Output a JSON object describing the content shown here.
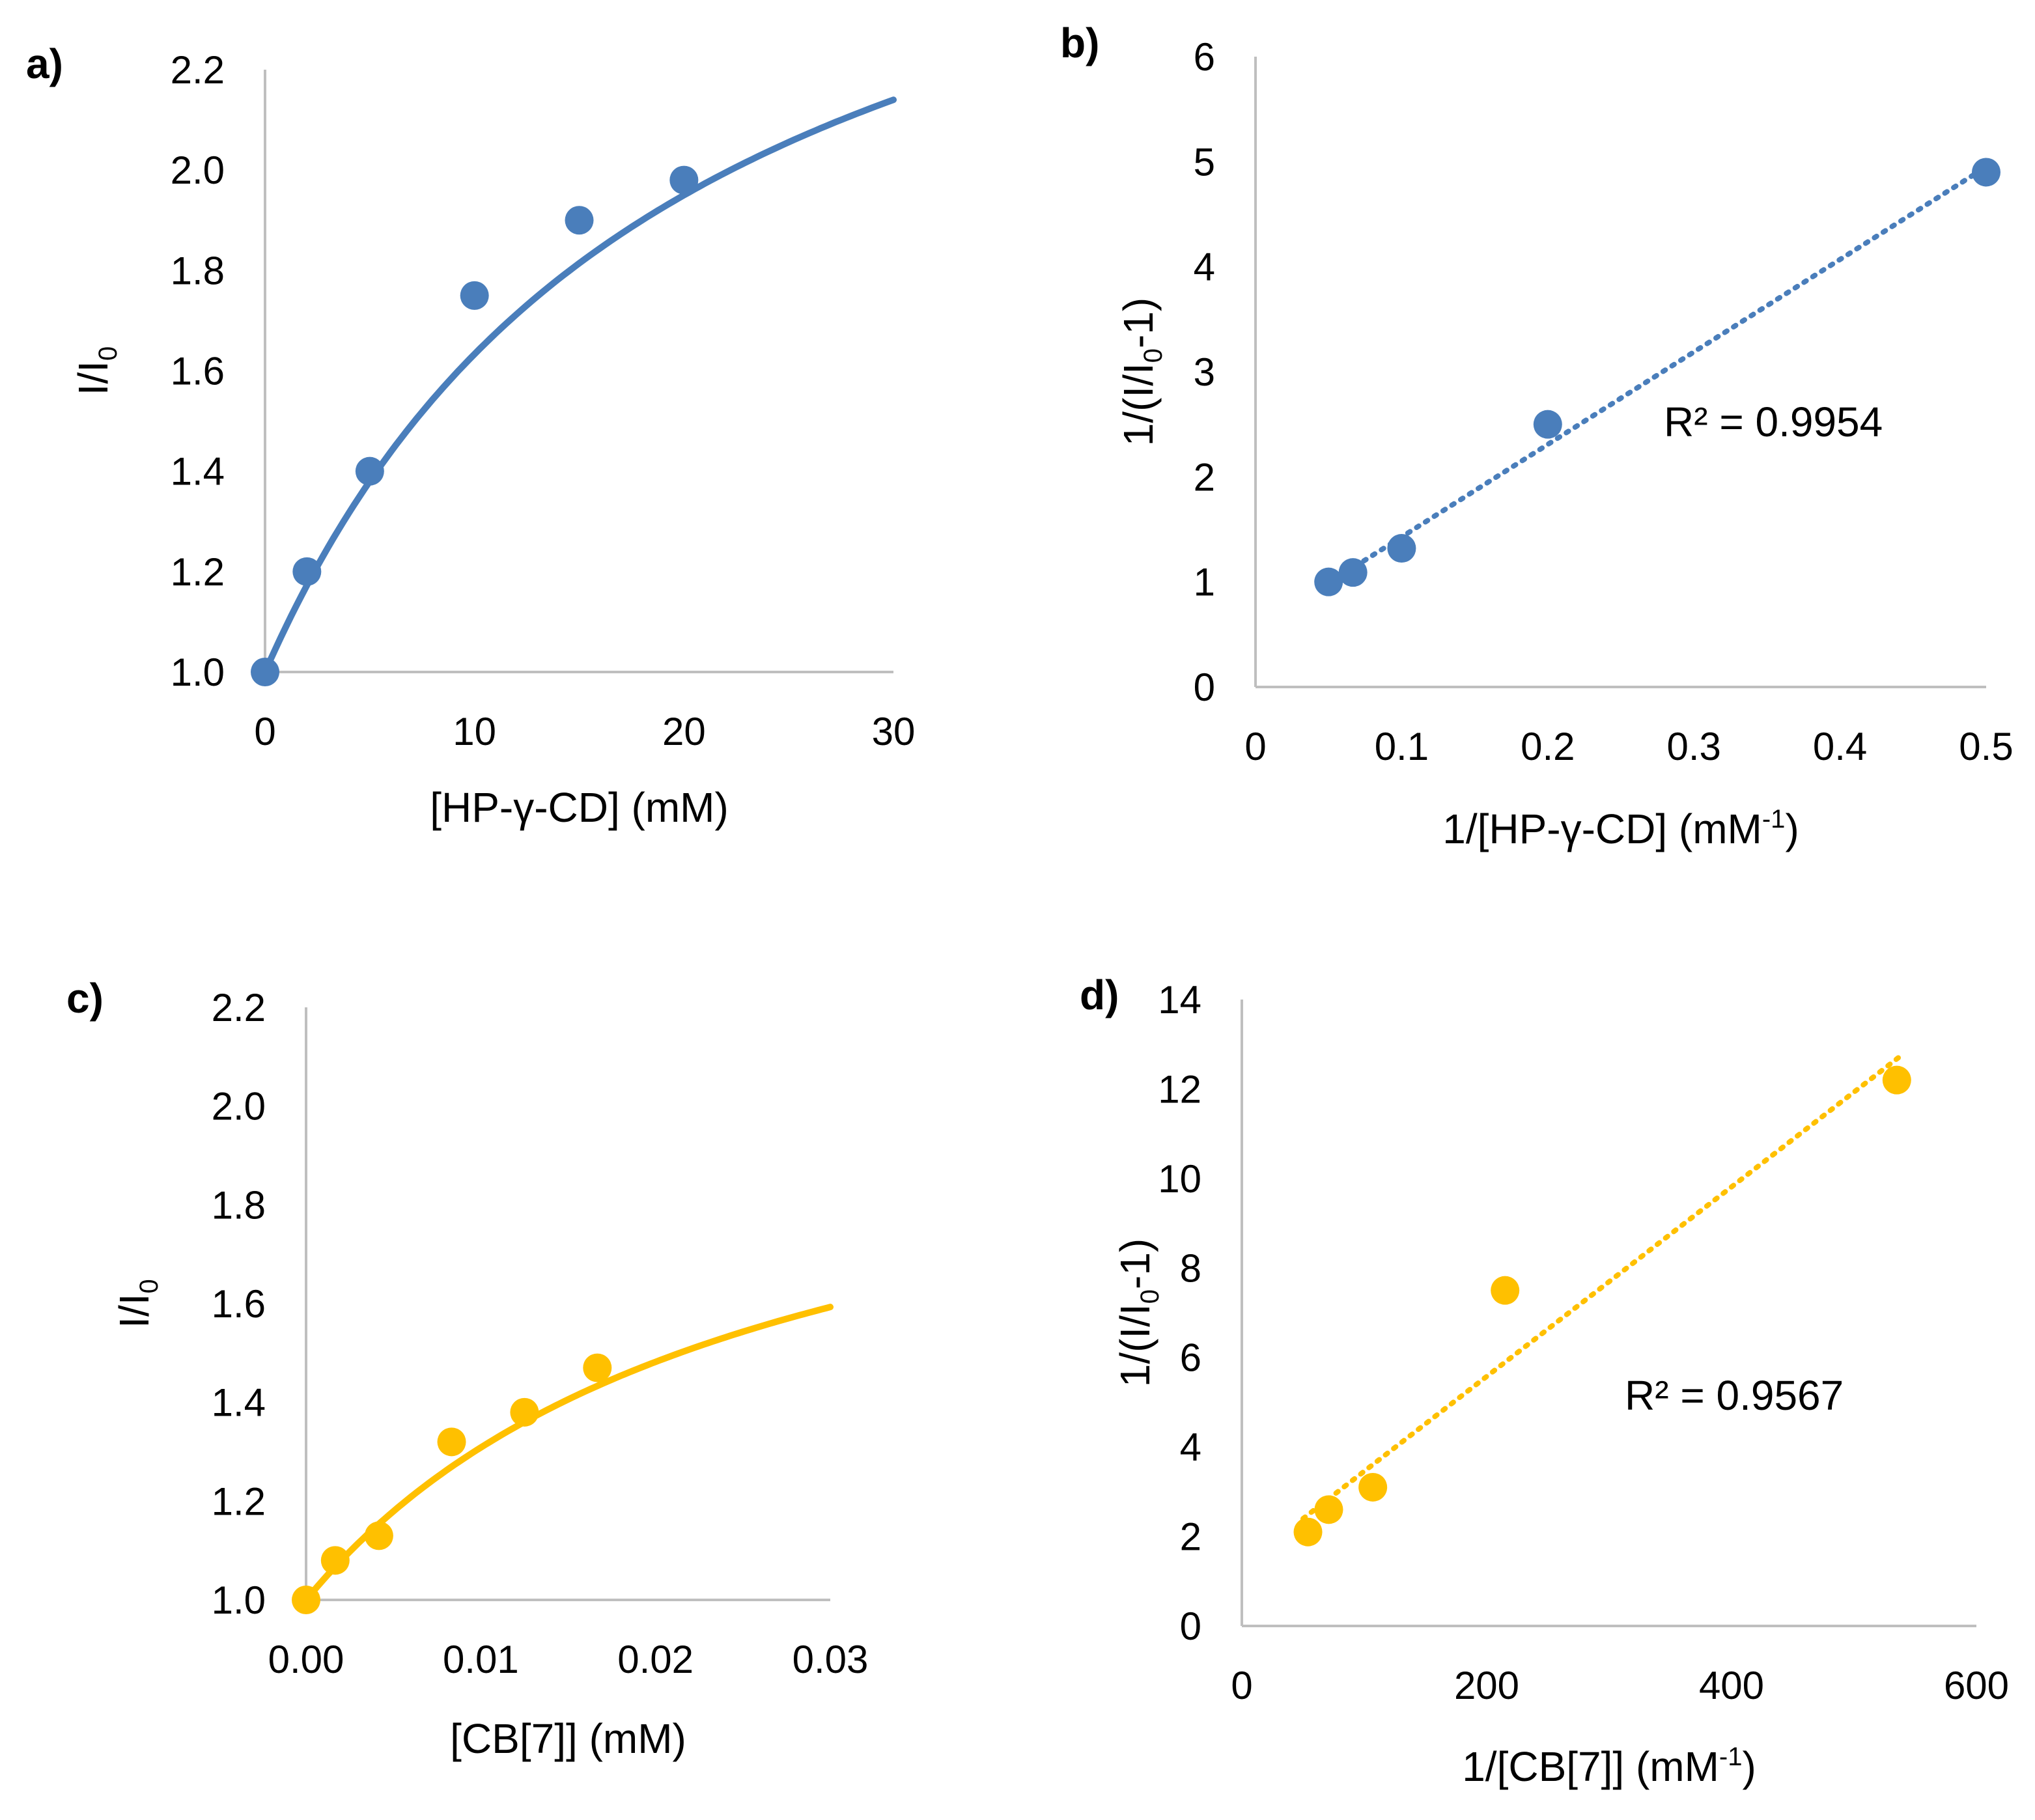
{
  "chart_data": [
    {
      "id": "a",
      "panel_label": "a)",
      "type": "scatter",
      "color": "#4a7ebb",
      "xlabel": "[HP-γ-CD] (mM)",
      "ylabel": {
        "main": "I/I",
        "sub": "0"
      },
      "xlim": [
        0,
        30
      ],
      "ylim": [
        1.0,
        2.2
      ],
      "xticks": [
        0,
        10,
        20,
        30
      ],
      "yticks": [
        1.0,
        1.2,
        1.4,
        1.6,
        1.8,
        2.0,
        2.2
      ],
      "x_decimals": 0,
      "y_decimals": 1,
      "x": [
        0,
        2,
        5,
        10,
        15,
        20
      ],
      "y": [
        1.0,
        1.2,
        1.4,
        1.75,
        1.9,
        1.98
      ],
      "fit": {
        "type": "binding_curve",
        "style": "solid",
        "a": 1.9,
        "k": 0.05
      },
      "annotation": ""
    },
    {
      "id": "b",
      "panel_label": "b)",
      "type": "scatter",
      "color": "#4a7ebb",
      "xlabel": {
        "main": "1/[HP-γ-CD] (mM",
        "sup": "-1",
        "end": ")"
      },
      "ylabel": {
        "main": "1/(I/I",
        "sub": "0",
        "end": "-1)"
      },
      "xlim": [
        0,
        0.5
      ],
      "ylim": [
        0,
        6
      ],
      "xticks": [
        0,
        0.1,
        0.2,
        0.3,
        0.4,
        0.5
      ],
      "xtick_labels": [
        "0",
        "0.1",
        "0.2",
        "0.3",
        "0.4",
        "0.5"
      ],
      "yticks": [
        0,
        1,
        2,
        3,
        4,
        5,
        6
      ],
      "x_decimals": 1,
      "y_decimals": 0,
      "x": [
        0.05,
        0.0667,
        0.1,
        0.2,
        0.5
      ],
      "y": [
        1.0,
        1.09,
        1.32,
        2.5,
        4.9
      ],
      "fit": {
        "type": "linear",
        "style": "dotted",
        "x_range": [
          0.05,
          0.5
        ]
      },
      "annotation": "R² = 0.9954"
    },
    {
      "id": "c",
      "panel_label": "c)",
      "type": "scatter",
      "color": "#ffc000",
      "xlabel": "[CB[7]] (mM)",
      "ylabel": {
        "main": "I/I",
        "sub": "0"
      },
      "xlim": [
        0,
        0.03
      ],
      "ylim": [
        1.0,
        2.2
      ],
      "xticks": [
        0,
        0.01,
        0.02,
        0.03
      ],
      "yticks": [
        1.0,
        1.2,
        1.4,
        1.6,
        1.8,
        2.0,
        2.2
      ],
      "x_decimals": 2,
      "y_decimals": 1,
      "x": [
        0,
        0.00167,
        0.00417,
        0.00833,
        0.0125,
        0.01667
      ],
      "y": [
        1.0,
        1.08,
        1.13,
        1.32,
        1.38,
        1.47
      ],
      "fit": {
        "type": "binding_curve",
        "style": "solid",
        "a": 1.1,
        "k": 39
      },
      "annotation": ""
    },
    {
      "id": "d",
      "panel_label": "d)",
      "type": "scatter",
      "color": "#ffc000",
      "xlabel": {
        "main": "1/[CB[7]] (mM",
        "sup": "-1",
        "end": ")"
      },
      "ylabel": {
        "main": "1/(I/I",
        "sub": "0",
        "end": "-1)"
      },
      "xlim": [
        0,
        600
      ],
      "ylim": [
        0,
        14
      ],
      "xticks": [
        0,
        200,
        400,
        600
      ],
      "yticks": [
        0,
        2,
        4,
        6,
        8,
        10,
        12,
        14
      ],
      "x_decimals": 0,
      "y_decimals": 0,
      "x": [
        54,
        71,
        107,
        215,
        535
      ],
      "y": [
        2.1,
        2.6,
        3.1,
        7.5,
        12.2
      ],
      "fit": {
        "type": "linear",
        "style": "dotted",
        "x_range": [
          50,
          540
        ]
      },
      "annotation": "R² = 0.9567"
    }
  ]
}
